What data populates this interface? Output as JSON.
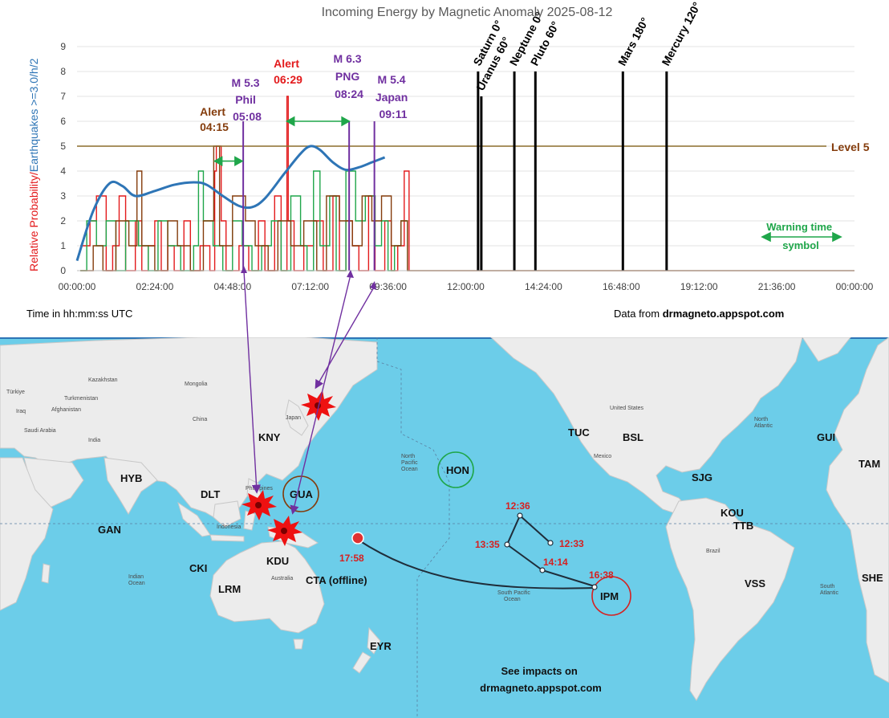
{
  "chart_data": {
    "type": "line",
    "title": "Incoming Energy by Magnetic Anomaly 2025-08-12",
    "ylabel_red": "Relative Probability/",
    "ylabel_blue": "Earthquakes >=3.0/h/2",
    "xlabel": "Time in hh:mm:ss UTC",
    "source_prefix": "Data from ",
    "source_site": "drmagneto.appspot.com",
    "ylim": [
      0,
      9
    ],
    "xlim_hours": [
      0,
      24
    ],
    "y_ticks": [
      "0",
      "1",
      "2",
      "3",
      "4",
      "5",
      "6",
      "7",
      "8",
      "9"
    ],
    "x_ticks": [
      {
        "h": 0,
        "label": "00:00:00"
      },
      {
        "h": 2.4,
        "label": "02:24:00"
      },
      {
        "h": 4.8,
        "label": "04:48:00"
      },
      {
        "h": 7.2,
        "label": "07:12:00"
      },
      {
        "h": 9.6,
        "label": "09:36:00"
      },
      {
        "h": 12,
        "label": "12:00:00"
      },
      {
        "h": 14.4,
        "label": "14:24:00"
      },
      {
        "h": 16.8,
        "label": "16:48:00"
      },
      {
        "h": 19.2,
        "label": "19:12:00"
      },
      {
        "h": 21.6,
        "label": "21:36:00"
      },
      {
        "h": 24,
        "label": "00:00:00"
      }
    ],
    "level": {
      "value": 5,
      "label": "Level 5"
    },
    "series": [
      {
        "color": "#e31a1c",
        "segments": [
          [
            0.1,
            1
          ],
          [
            0.4,
            2
          ],
          [
            0.6,
            3
          ],
          [
            0.9,
            0
          ],
          [
            1.1,
            1
          ],
          [
            1.3,
            3
          ],
          [
            1.5,
            0
          ],
          [
            1.8,
            2
          ],
          [
            2.0,
            0
          ],
          [
            2.2,
            1
          ],
          [
            2.4,
            2
          ],
          [
            2.6,
            0
          ],
          [
            2.8,
            1
          ],
          [
            3.0,
            0
          ],
          [
            3.3,
            2
          ],
          [
            3.5,
            0
          ],
          [
            3.8,
            1
          ],
          [
            4.1,
            0
          ],
          [
            4.25,
            4
          ],
          [
            4.3,
            5
          ],
          [
            4.45,
            2
          ],
          [
            4.6,
            0
          ],
          [
            5.0,
            1
          ],
          [
            5.3,
            0
          ],
          [
            5.6,
            2
          ],
          [
            5.8,
            0
          ],
          [
            6.1,
            3
          ],
          [
            6.3,
            0
          ],
          [
            6.48,
            7
          ],
          [
            6.52,
            2
          ],
          [
            6.7,
            0
          ],
          [
            7.0,
            1
          ],
          [
            7.3,
            2
          ],
          [
            7.6,
            0
          ],
          [
            7.9,
            3
          ],
          [
            8.1,
            0
          ],
          [
            8.3,
            2
          ],
          [
            8.5,
            1
          ],
          [
            8.7,
            0
          ],
          [
            9.0,
            3
          ],
          [
            9.2,
            0
          ],
          [
            9.5,
            2
          ],
          [
            9.7,
            0
          ],
          [
            9.9,
            1
          ],
          [
            10.1,
            4
          ],
          [
            10.25,
            0
          ]
        ]
      },
      {
        "color": "#1fa64a",
        "segments": [
          [
            0.1,
            0
          ],
          [
            0.3,
            2
          ],
          [
            0.6,
            1
          ],
          [
            0.9,
            2
          ],
          [
            1.2,
            0
          ],
          [
            1.5,
            2
          ],
          [
            1.9,
            1
          ],
          [
            2.2,
            0
          ],
          [
            2.5,
            2
          ],
          [
            2.8,
            1
          ],
          [
            3.2,
            0
          ],
          [
            3.6,
            1
          ],
          [
            3.75,
            4
          ],
          [
            3.9,
            2
          ],
          [
            4.2,
            1
          ],
          [
            4.5,
            0
          ],
          [
            4.8,
            2
          ],
          [
            5.1,
            1
          ],
          [
            5.4,
            0
          ],
          [
            5.7,
            1
          ],
          [
            6.0,
            2
          ],
          [
            6.3,
            0
          ],
          [
            6.6,
            3
          ],
          [
            6.9,
            1
          ],
          [
            7.1,
            0
          ],
          [
            7.3,
            4
          ],
          [
            7.5,
            1
          ],
          [
            7.8,
            3
          ],
          [
            8.0,
            0
          ],
          [
            8.3,
            4
          ],
          [
            8.6,
            2
          ],
          [
            8.9,
            3
          ],
          [
            9.2,
            1
          ],
          [
            9.4,
            2
          ],
          [
            9.6,
            0
          ],
          [
            9.8,
            1
          ],
          [
            10.0,
            2
          ],
          [
            10.2,
            0
          ]
        ]
      },
      {
        "color": "#843c0c",
        "segments": [
          [
            0.1,
            0
          ],
          [
            0.5,
            1
          ],
          [
            0.8,
            0
          ],
          [
            1.2,
            2
          ],
          [
            1.6,
            1
          ],
          [
            1.85,
            4
          ],
          [
            2.0,
            1
          ],
          [
            2.4,
            0
          ],
          [
            2.8,
            2
          ],
          [
            3.1,
            1
          ],
          [
            3.5,
            0
          ],
          [
            3.9,
            2
          ],
          [
            4.22,
            5
          ],
          [
            4.4,
            1
          ],
          [
            4.8,
            3
          ],
          [
            5.2,
            2
          ],
          [
            5.5,
            1
          ],
          [
            5.9,
            0
          ],
          [
            6.2,
            2
          ],
          [
            6.6,
            1
          ],
          [
            7.0,
            2
          ],
          [
            7.4,
            0
          ],
          [
            7.7,
            3
          ],
          [
            8.1,
            2
          ],
          [
            8.5,
            1
          ],
          [
            8.8,
            3
          ],
          [
            9.1,
            2
          ],
          [
            9.4,
            3
          ],
          [
            9.7,
            1
          ],
          [
            10.0,
            2
          ],
          [
            10.2,
            0
          ],
          [
            24.0,
            0
          ]
        ]
      }
    ],
    "trend": {
      "color": "#2e75b6",
      "points": [
        [
          0.0,
          0.4
        ],
        [
          0.5,
          2.4
        ],
        [
          1.0,
          3.5
        ],
        [
          1.4,
          3.4
        ],
        [
          1.8,
          3.0
        ],
        [
          2.4,
          3.2
        ],
        [
          3.0,
          3.45
        ],
        [
          3.6,
          3.55
        ],
        [
          4.0,
          3.45
        ],
        [
          4.5,
          3.0
        ],
        [
          5.0,
          2.6
        ],
        [
          5.4,
          2.55
        ],
        [
          5.8,
          2.9
        ],
        [
          6.4,
          3.9
        ],
        [
          6.9,
          4.7
        ],
        [
          7.2,
          5.0
        ],
        [
          7.5,
          4.85
        ],
        [
          7.9,
          4.35
        ],
        [
          8.3,
          4.05
        ],
        [
          8.7,
          4.15
        ],
        [
          9.1,
          4.35
        ],
        [
          9.5,
          4.55
        ]
      ]
    },
    "planets": [
      {
        "name": "Saturn 0°",
        "h": 12.38,
        "value": 8
      },
      {
        "name": "Uranus 60°",
        "h": 12.48,
        "value": 7
      },
      {
        "name": "Neptune 0°",
        "h": 13.5,
        "value": 8
      },
      {
        "name": "Pluto 60°",
        "h": 14.15,
        "value": 8
      },
      {
        "name": "Mars 180°",
        "h": 16.85,
        "value": 8
      },
      {
        "name": "Mercury 120°",
        "h": 18.2,
        "value": 8
      }
    ],
    "alerts": [
      {
        "style": "brown",
        "lines": [
          "Alert",
          "04:15"
        ]
      },
      {
        "style": "purple",
        "lines": [
          "M 5.3",
          "Phil",
          "05:08"
        ]
      },
      {
        "style": "red",
        "lines": [
          "Alert",
          "06:29"
        ]
      },
      {
        "style": "purple",
        "lines": [
          "M 6.3",
          "PNG",
          "08:24"
        ]
      },
      {
        "style": "purple",
        "lines": [
          "M 5.4",
          "Japan",
          "09:11"
        ]
      }
    ],
    "quake_markers": [
      {
        "h": 5.13,
        "value": 6
      },
      {
        "h": 8.4,
        "value": 6
      },
      {
        "h": 9.18,
        "value": 6
      }
    ],
    "warning_arrows": [
      {
        "h1": 4.25,
        "h2": 5.1,
        "value": 4.4
      },
      {
        "h1": 6.48,
        "h2": 8.4,
        "value": 6.0
      }
    ],
    "warning_legend": [
      "Warning time",
      "symbol"
    ]
  },
  "map": {
    "colors": {
      "ocean": "#6ccde9",
      "land": "#ececec"
    },
    "stations": [
      {
        "label": "KNY"
      },
      {
        "label": "HYB"
      },
      {
        "label": "DLT"
      },
      {
        "label": "GAN"
      },
      {
        "label": "GUA"
      },
      {
        "label": "HON"
      },
      {
        "label": "TUC"
      },
      {
        "label": "BSL"
      },
      {
        "label": "SJG"
      },
      {
        "label": "KOU"
      },
      {
        "label": "TTB"
      },
      {
        "label": "VSS"
      },
      {
        "label": "GUI"
      },
      {
        "label": "TAM"
      },
      {
        "label": "SHE"
      },
      {
        "label": "CKI"
      },
      {
        "label": "KDU"
      },
      {
        "label": "LRM"
      },
      {
        "label": "CTA (offline)"
      },
      {
        "label": "EYR"
      },
      {
        "label": "IPM"
      }
    ],
    "track_times": [
      "12:36",
      "13:35",
      "12:33",
      "14:14",
      "16:38",
      "17:58"
    ],
    "impacts_text": [
      "See impacts on",
      "drmagneto.appspot.com"
    ]
  }
}
